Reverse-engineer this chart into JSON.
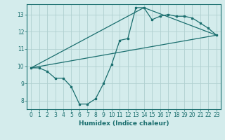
{
  "xlabel": "Humidex (Indice chaleur)",
  "bg_color": "#d4ecec",
  "grid_color": "#b0d0d0",
  "line_color": "#1a6e6e",
  "xlim": [
    -0.5,
    23.5
  ],
  "ylim": [
    7.5,
    13.6
  ],
  "xticks": [
    0,
    1,
    2,
    3,
    4,
    5,
    6,
    7,
    8,
    9,
    10,
    11,
    12,
    13,
    14,
    15,
    16,
    17,
    18,
    19,
    20,
    21,
    22,
    23
  ],
  "yticks": [
    8,
    9,
    10,
    11,
    12,
    13
  ],
  "series1_x": [
    0,
    1,
    2,
    3,
    4,
    5,
    6,
    7,
    8,
    9,
    10,
    11,
    12,
    13,
    14,
    15,
    16,
    17,
    18,
    19,
    20,
    21,
    22,
    23
  ],
  "series1_y": [
    9.9,
    9.9,
    9.7,
    9.3,
    9.3,
    8.8,
    7.8,
    7.8,
    8.1,
    9.0,
    10.1,
    11.5,
    11.6,
    13.4,
    13.4,
    12.7,
    12.9,
    13.0,
    12.9,
    12.9,
    12.8,
    12.5,
    12.2,
    11.8
  ],
  "series2_x": [
    0,
    23
  ],
  "series2_y": [
    9.9,
    11.8
  ],
  "series3_x": [
    0,
    14,
    23
  ],
  "series3_y": [
    9.9,
    13.4,
    11.8
  ],
  "tick_fontsize": 5.5,
  "xlabel_fontsize": 6.5
}
